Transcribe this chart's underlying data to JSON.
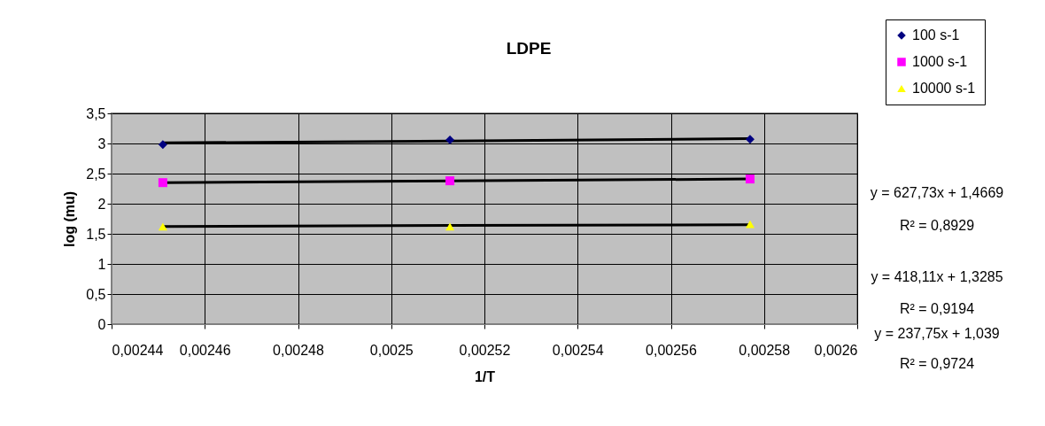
{
  "chart_data": {
    "type": "scatter",
    "title": "LDPE",
    "xlabel": "1/T",
    "ylabel": "log (mu)",
    "x": [
      0.002451,
      0.0025126,
      0.002577
    ],
    "series": [
      {
        "name": "100 s-1",
        "color": "#000080",
        "marker": "diamond",
        "values": [
          2.98,
          3.06,
          3.07
        ]
      },
      {
        "name": "1000 s-1",
        "color": "#ff00ff",
        "marker": "square",
        "values": [
          2.35,
          2.38,
          2.41
        ]
      },
      {
        "name": "10000 s-1",
        "color": "#ffff00",
        "marker": "triangle",
        "values": [
          1.62,
          1.62,
          1.66
        ]
      },
      {
        "type": "line",
        "color": "#000000",
        "marker": "none",
        "values": [
          3.01,
          3.04,
          3.08
        ]
      },
      {
        "type": "line",
        "color": "#000000",
        "marker": "none",
        "values": [
          2.35,
          2.38,
          2.41
        ]
      },
      {
        "type": "line",
        "color": "#000000",
        "marker": "none",
        "values": [
          1.62,
          1.64,
          1.65
        ]
      }
    ],
    "xlim": [
      0.00244,
      0.0026
    ],
    "xticks": [
      {
        "value": 0.00244,
        "label": "0,00244"
      },
      {
        "value": 0.00246,
        "label": "0,00246"
      },
      {
        "value": 0.00248,
        "label": "0,00248"
      },
      {
        "value": 0.0025,
        "label": "0,0025"
      },
      {
        "value": 0.00252,
        "label": "0,00252"
      },
      {
        "value": 0.00254,
        "label": "0,00254"
      },
      {
        "value": 0.00256,
        "label": "0,00256"
      },
      {
        "value": 0.00258,
        "label": "0,00258"
      },
      {
        "value": 0.0026,
        "label": "0,0026"
      }
    ],
    "ylim": [
      0,
      3.5
    ],
    "yticks": [
      0,
      {
        "value": 0.5,
        "label": "0,5"
      },
      1,
      {
        "value": 1.5,
        "label": "1,5"
      },
      2,
      {
        "value": 2.5,
        "label": "2,5"
      },
      3,
      {
        "value": 3.5,
        "label": "3,5"
      }
    ],
    "grid": true,
    "legend": "top right",
    "annotations": [
      "y = 627,73x + 1,4669",
      "R² = 0,8929",
      "y = 418,11x + 1,3285",
      "R² = 0,9194",
      "y = 237,75x + 1,039",
      "R² = 0,9724"
    ]
  }
}
